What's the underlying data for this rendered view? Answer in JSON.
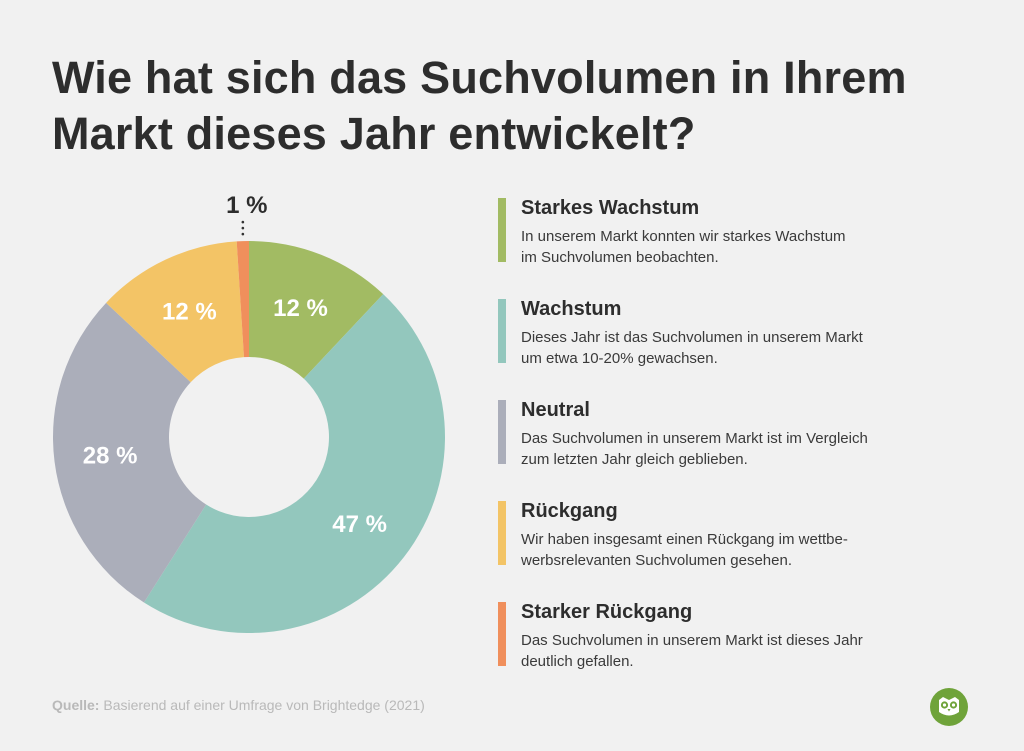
{
  "title": "Wie hat sich das Suchvolumen in Ihrem Markt dieses Jahr entwickelt?",
  "chart_data": {
    "type": "pie",
    "donut": true,
    "slices": [
      {
        "label": "Starkes Wachstum",
        "value": 12,
        "display": "12 %",
        "color": "#a2bb63"
      },
      {
        "label": "Wachstum",
        "value": 47,
        "display": "47 %",
        "color": "#93c7bd"
      },
      {
        "label": "Neutral",
        "value": 28,
        "display": "28 %",
        "color": "#abaeba"
      },
      {
        "label": "Rückgang",
        "value": 12,
        "display": "12 %",
        "color": "#f3c466"
      },
      {
        "label": "Starker Rückgang",
        "value": 1,
        "display": "1 %",
        "color": "#f08f5c"
      }
    ]
  },
  "legend": [
    {
      "title": "Starkes Wachstum",
      "line1": "In unserem Markt konnten wir starkes Wachstum",
      "line2": "im Suchvolumen beobachten.",
      "color": "#a2bb63"
    },
    {
      "title": "Wachstum",
      "line1": "Dieses Jahr ist das Suchvolumen in unserem Markt",
      "line2": "um etwa 10-20% gewachsen.",
      "color": "#93c7bd"
    },
    {
      "title": "Neutral",
      "line1": "Das Suchvolumen in unserem Markt ist im Vergleich",
      "line2": "zum letzten Jahr gleich geblieben.",
      "color": "#abaeba"
    },
    {
      "title": "Rückgang",
      "line1": "Wir haben insgesamt einen Rückgang im wettbe-",
      "line2": "werbsrelevanten Suchvolumen gesehen.",
      "color": "#f3c466"
    },
    {
      "title": "Starker Rückgang",
      "line1": "Das Suchvolumen in unserem Markt ist dieses Jahr",
      "line2": "deutlich gefallen.",
      "color": "#f08f5c"
    }
  ],
  "source": {
    "label": "Quelle:",
    "text": "Basierend auf einer Umfrage von Brightedge (2021)"
  },
  "logo": {
    "icon": "owl-icon",
    "color": "#6fa33a"
  }
}
